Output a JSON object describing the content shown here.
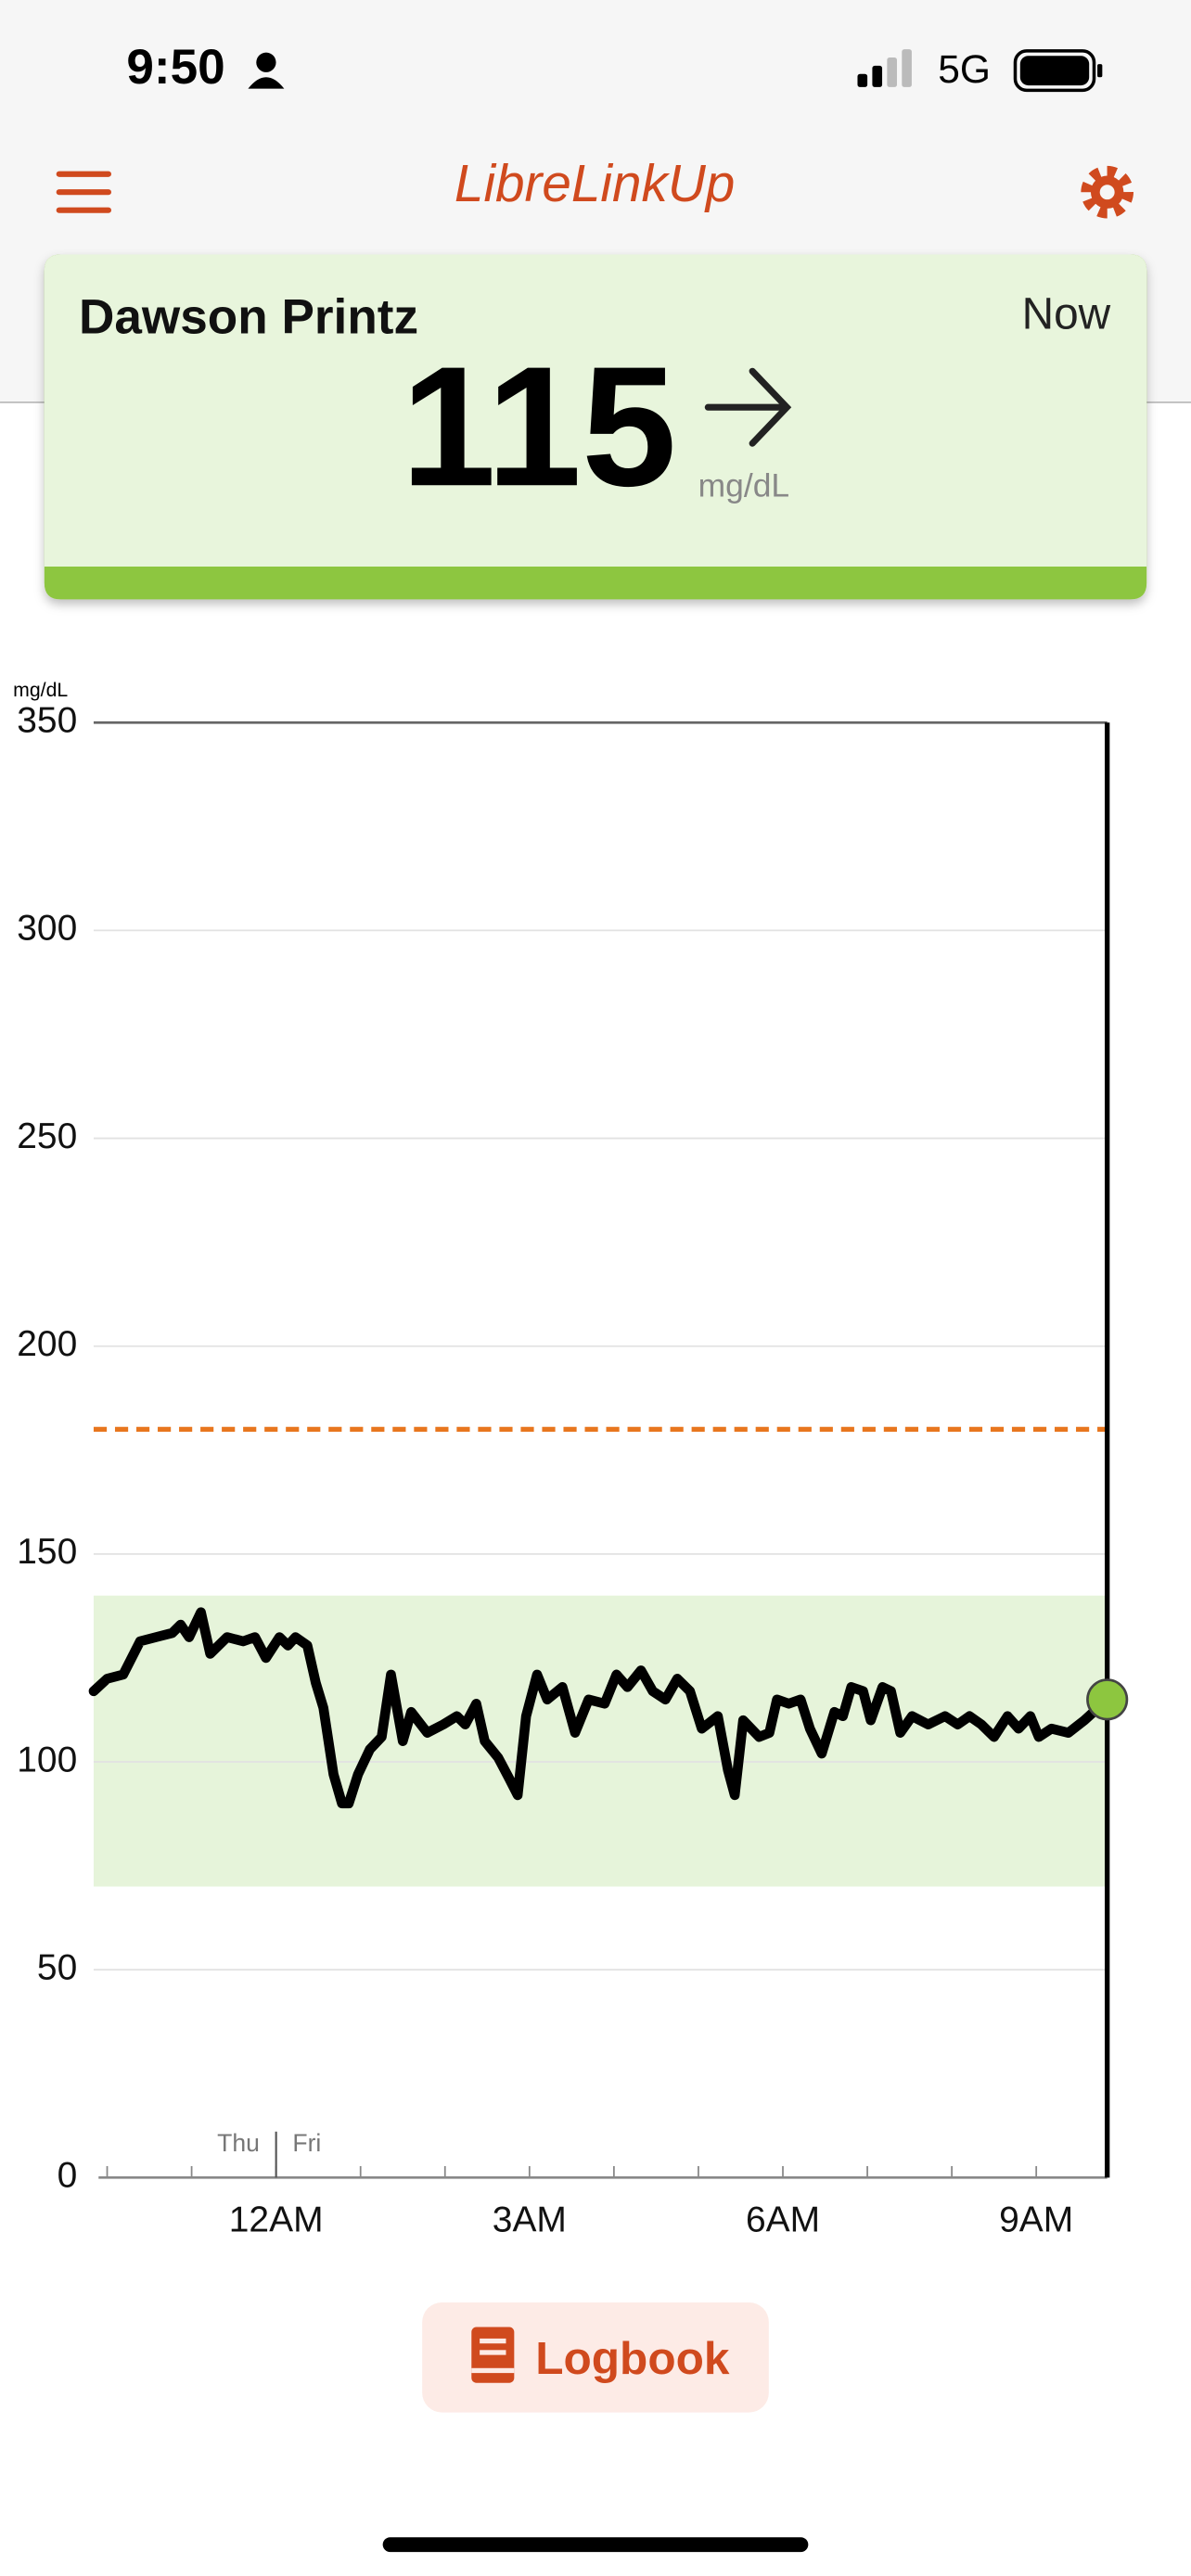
{
  "status_bar": {
    "time": "9:50",
    "network": "5G"
  },
  "header": {
    "title": "LibreLinkUp"
  },
  "card": {
    "name": "Dawson Printz",
    "time": "Now",
    "value": 115,
    "unit": "mg/dL"
  },
  "chart_data": {
    "type": "line",
    "y_label": "mg/dL",
    "x": [
      -2.16,
      -2.0,
      -1.81,
      -1.61,
      -1.42,
      -1.23,
      -1.13,
      -1.03,
      -0.89,
      -0.78,
      -0.58,
      -0.39,
      -0.25,
      -0.12,
      0.04,
      0.14,
      0.23,
      0.37,
      0.47,
      0.56,
      0.68,
      0.78,
      0.86,
      0.97,
      1.11,
      1.25,
      1.36,
      1.5,
      1.6,
      1.79,
      1.98,
      2.14,
      2.24,
      2.37,
      2.47,
      2.63,
      2.76,
      2.86,
      2.96,
      3.09,
      3.21,
      3.39,
      3.54,
      3.7,
      3.89,
      4.03,
      4.16,
      4.32,
      4.46,
      4.61,
      4.75,
      4.9,
      5.04,
      5.23,
      5.35,
      5.43,
      5.53,
      5.72,
      5.84,
      5.93,
      6.07,
      6.21,
      6.32,
      6.46,
      6.61,
      6.71,
      6.81,
      6.95,
      7.04,
      7.18,
      7.28,
      7.39,
      7.53,
      7.72,
      7.92,
      8.07,
      8.21,
      8.35,
      8.5,
      8.66,
      8.79,
      8.93,
      9.03,
      9.18,
      9.38,
      9.57,
      9.84
    ],
    "series": [
      {
        "color": "#000000",
        "values": [
          117,
          120,
          121,
          129,
          130,
          131,
          133,
          130,
          136,
          126,
          130,
          129,
          130,
          125,
          130,
          128,
          130,
          128,
          119,
          113,
          97,
          90,
          90,
          97,
          103,
          106,
          121,
          105,
          112,
          107,
          109,
          111,
          109,
          114,
          105,
          101,
          96,
          92,
          111,
          121,
          115,
          118,
          107,
          115,
          114,
          121,
          118,
          122,
          117,
          115,
          120,
          117,
          108,
          111,
          98,
          92,
          110,
          106,
          107,
          115,
          114,
          115,
          108,
          102,
          112,
          111,
          118,
          117,
          110,
          118,
          117,
          107,
          111,
          109,
          111,
          109,
          111,
          109,
          106,
          111,
          108,
          111,
          106,
          108,
          107,
          110,
          115
        ]
      }
    ],
    "xlim": [
      -2.16,
      9.84
    ],
    "xticks": [
      {
        "value": 0,
        "label": "12AM"
      },
      {
        "value": 3,
        "label": "3AM"
      },
      {
        "value": 6,
        "label": "6AM"
      },
      {
        "value": 9,
        "label": "9AM"
      }
    ],
    "xminor_ticks": [
      -2,
      -1,
      1,
      2,
      4,
      5,
      7,
      8
    ],
    "day_divider": {
      "value": 0,
      "labels": [
        "Thu",
        "Fri"
      ]
    },
    "ylim": [
      0,
      350
    ],
    "yticks": [
      0,
      50,
      100,
      150,
      200,
      250,
      300,
      350
    ],
    "grid": true,
    "target_range": [
      70,
      140
    ],
    "target_color": "#e6f4da",
    "high_limit": 180,
    "high_color": "#e8761e",
    "current_color": "#8dc63f"
  },
  "button": {
    "label": "Logbook"
  }
}
